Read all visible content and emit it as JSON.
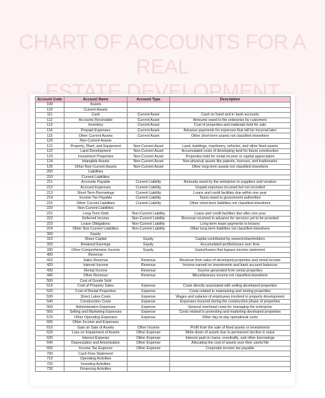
{
  "title": {
    "line1": "CHART OF ACCOUNTS FOR A REAL",
    "line2": "ESTATE DEVELOPMENT COMPANY"
  },
  "table": {
    "headers": [
      "Account Code",
      "Account Name",
      "Account Type",
      "Description"
    ],
    "rows": [
      [
        "100",
        "Assets",
        "",
        ""
      ],
      [
        "110",
        "Current Assets",
        "",
        ""
      ],
      [
        "111",
        "Cash",
        "Current Asset",
        "Cash on hand and in bank accounts"
      ],
      [
        "112",
        "Accounts Receivable",
        "Current Asset",
        "Amounts owed to the enterprise by customers"
      ],
      [
        "113",
        "Inventory",
        "Current Asset",
        "Cost of properties and materials held for sale"
      ],
      [
        "114",
        "Prepaid Expenses",
        "Current Asset",
        "Advance payments for expenses that will be incurred later"
      ],
      [
        "115",
        "Other Current Assets",
        "Current Asset",
        "Other short-term assets not classified elsewhere"
      ],
      [
        "120",
        "Non-Current Assets",
        "",
        ""
      ],
      [
        "121",
        "Property, Plant, and Equipment",
        "Non-Current Asset",
        "Land, buildings, machinery, vehicles, and other fixed assets"
      ],
      [
        "122",
        "Land Development",
        "Non-Current Asset",
        "Accumulated costs of developing land for future construction"
      ],
      [
        "123",
        "Investment Properties",
        "Non-Current Asset",
        "Properties held for rental income or capital appreciation"
      ],
      [
        "124",
        "Intangible Assets",
        "Non-Current Asset",
        "Non-physical assets like patents, licenses, and trademarks"
      ],
      [
        "125",
        "Other Non-Current Assets",
        "Non-Current Asset",
        "Other long-term assets not classified elsewhere"
      ],
      [
        "200",
        "Liabilities",
        "",
        ""
      ],
      [
        "210",
        "Current Liabilities",
        "",
        ""
      ],
      [
        "211",
        "Accounts Payable",
        "Current Liability",
        "Amounts owed by the enterprise to suppliers and vendors"
      ],
      [
        "212",
        "Accrued Expenses",
        "Current Liability",
        "Unpaid expenses incurred but not recorded"
      ],
      [
        "213",
        "Short-Term Borrowings",
        "Current Liability",
        "Loans and credit facilities due within one year"
      ],
      [
        "214",
        "Income Tax Payable",
        "Current Liability",
        "Taxes owed to government authorities"
      ],
      [
        "215",
        "Other Current Liabilities",
        "Current Liability",
        "Other short-term liabilities not classified elsewhere"
      ],
      [
        "220",
        "Non-Current Liabilities",
        "",
        ""
      ],
      [
        "221",
        "Long-Term Debt",
        "Non-Current Liability",
        "Loans and credit facilities due after one year"
      ],
      [
        "222",
        "Deferred Income",
        "Non-Current Liability",
        "Revenue received in advance for services yet to be provided"
      ],
      [
        "223",
        "Lease Obligations",
        "Non-Current Liability",
        "Long-term lease payments to lessors"
      ],
      [
        "224",
        "Other Non-Current Liabilities",
        "Non-Current Liability",
        "Other long-term liabilities not classified elsewhere"
      ],
      [
        "300",
        "Equity",
        "",
        ""
      ],
      [
        "310",
        "Share Capital",
        "Equity",
        "Capital contributed by owners/shareholders"
      ],
      [
        "320",
        "Retained Earnings",
        "Equity",
        "Accumulated profits/losses over time"
      ],
      [
        "330",
        "Other Comprehensive Income",
        "Equity",
        "Gains/losses that bypass income statement"
      ],
      [
        "400",
        "Revenue",
        "",
        ""
      ],
      [
        "410",
        "Sales Revenue",
        "Revenue",
        "Revenue from sales of developed properties and rental income"
      ],
      [
        "420",
        "Interest Income",
        "Revenue",
        "Income earned on investments and bank account balances"
      ],
      [
        "430",
        "Rental Income",
        "Revenue",
        "Income generated from rental properties"
      ],
      [
        "440",
        "Other Revenue",
        "Revenue",
        "Miscellaneous income not classified elsewhere"
      ],
      [
        "500",
        "Cost of Goods Sold",
        "",
        ""
      ],
      [
        "510",
        "Cost of Property Sales",
        "Expense",
        "Costs directly associated with selling developed properties"
      ],
      [
        "520",
        "Cost of Rental Properties",
        "Expense",
        "Costs related to maintaining and renting properties"
      ],
      [
        "530",
        "Direct Labor Costs",
        "Expense",
        "Wages and salaries of employees involved in property development"
      ],
      [
        "540",
        "Construction Costs",
        "Expense",
        "Expenses incurred during the construction phase of properties"
      ],
      [
        "550",
        "Administrative Expenses",
        "Expense",
        "General overhead costs for managing the enterprise"
      ],
      [
        "560",
        "Selling and Marketing Expenses",
        "Expense",
        "Costs related to promoting and marketing developed properties"
      ],
      [
        "570",
        "Other Operating Expenses",
        "Expense",
        "Other day-to-day operational costs"
      ],
      [
        "600",
        "Other Income and Expenses",
        "",
        ""
      ],
      [
        "610",
        "Gain on Sale of Assets",
        "Other Income",
        "Profit from the sale of fixed assets or investments"
      ],
      [
        "620",
        "Loss on Impairment of Assets",
        "Other Expense",
        "Write-down of assets due to permanent decline in value"
      ],
      [
        "630",
        "Interest Expense",
        "Other Expense",
        "Interest paid on loans, overdrafts, and other borrowings"
      ],
      [
        "640",
        "Depreciation and Amortization",
        "Other Expense",
        "Allocating the cost of assets over their useful life"
      ],
      [
        "650",
        "Income Tax Expense",
        "Other Expense",
        "Corporate income tax payable"
      ],
      [
        "700",
        "Cash Flow Statement",
        "",
        ""
      ],
      [
        "710",
        "Operating Activities",
        "",
        ""
      ],
      [
        "720",
        "Investing Activities",
        "",
        ""
      ],
      [
        "730",
        "Financing Activities",
        "",
        ""
      ]
    ]
  },
  "colors": {
    "header_bg": "#f6c6cf",
    "title_color": "#f5d6dc"
  }
}
